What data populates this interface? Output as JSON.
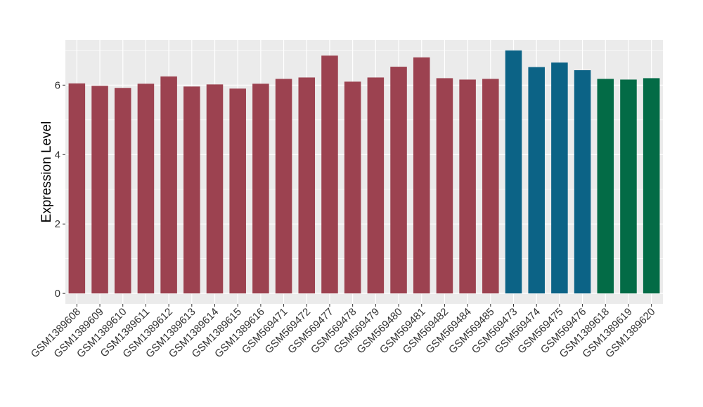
{
  "chart_data": {
    "type": "bar",
    "title": "",
    "xlabel": "",
    "ylabel": "Expression Level",
    "ylim": [
      -0.3,
      7.3
    ],
    "yticks": [
      0,
      2,
      4,
      6
    ],
    "grid": true,
    "legend": "none",
    "panel_background": "#ebebeb",
    "grid_color": "#ffffff",
    "categories": [
      "GSM1389608",
      "GSM1389609",
      "GSM1389610",
      "GSM1389611",
      "GSM1389612",
      "GSM1389613",
      "GSM1389614",
      "GSM1389615",
      "GSM1389616",
      "GSM569471",
      "GSM569472",
      "GSM569477",
      "GSM569478",
      "GSM569479",
      "GSM569480",
      "GSM569481",
      "GSM569482",
      "GSM569484",
      "GSM569485",
      "GSM569473",
      "GSM569474",
      "GSM569475",
      "GSM569476",
      "GSM1389618",
      "GSM1389619",
      "GSM1389620"
    ],
    "values": [
      6.05,
      5.98,
      5.92,
      6.04,
      6.25,
      5.96,
      6.02,
      5.9,
      6.04,
      6.18,
      6.22,
      6.85,
      6.1,
      6.22,
      6.53,
      6.8,
      6.2,
      6.16,
      6.18,
      7.0,
      6.52,
      6.65,
      6.43,
      6.18,
      6.16,
      6.2
    ],
    "colors": [
      "#9c4250",
      "#9c4250",
      "#9c4250",
      "#9c4250",
      "#9c4250",
      "#9c4250",
      "#9c4250",
      "#9c4250",
      "#9c4250",
      "#9c4250",
      "#9c4250",
      "#9c4250",
      "#9c4250",
      "#9c4250",
      "#9c4250",
      "#9c4250",
      "#9c4250",
      "#9c4250",
      "#9c4250",
      "#0c6386",
      "#0c6386",
      "#0c6386",
      "#0c6386",
      "#036b46",
      "#036b46",
      "#036b46"
    ]
  }
}
